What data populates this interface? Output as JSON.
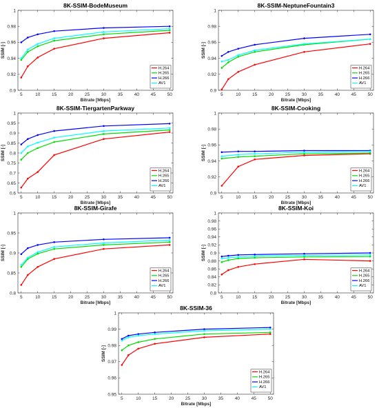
{
  "colors": {
    "H.264": "#ff0000",
    "H.265": "#00dd00",
    "H.266": "#0000ff",
    "AV1": "#00ffff"
  },
  "chart_data": [
    {
      "type": "line",
      "title": "8K-SSIM-BodeMuseum",
      "xlabel": "Bitrate [Mbps]",
      "ylabel": "SSIM [-]",
      "x": [
        5,
        7,
        10,
        15,
        30,
        50
      ],
      "xticks": [
        "5",
        "10",
        "15",
        "20",
        "25",
        "30",
        "35",
        "40",
        "45",
        "50"
      ],
      "yticks": [
        "0.9",
        "0.92",
        "0.94",
        "0.96",
        "0.98",
        "1"
      ],
      "xlim": [
        4,
        51
      ],
      "ylim": [
        0.9,
        1.0
      ],
      "grid": false,
      "legend": "bottom-right",
      "series": [
        {
          "name": "H.264",
          "values": [
            0.916,
            0.93,
            0.941,
            0.952,
            0.965,
            0.972
          ]
        },
        {
          "name": "H.265",
          "values": [
            0.938,
            0.948,
            0.955,
            0.962,
            0.97,
            0.975
          ]
        },
        {
          "name": "H.266",
          "values": [
            0.96,
            0.966,
            0.97,
            0.974,
            0.978,
            0.98
          ]
        },
        {
          "name": "AV1",
          "values": [
            0.94,
            0.951,
            0.958,
            0.965,
            0.973,
            0.977
          ]
        }
      ]
    },
    {
      "type": "line",
      "title": "8K-SSIM-NeptuneFountain3",
      "xlabel": "Bitrate [Mbps]",
      "ylabel": "SSIM [-]",
      "x": [
        5,
        7,
        10,
        15,
        30,
        50
      ],
      "xticks": [
        "5",
        "10",
        "15",
        "20",
        "25",
        "30",
        "35",
        "40",
        "45",
        "50"
      ],
      "yticks": [
        "0.9",
        "0.92",
        "0.94",
        "0.96",
        "0.98",
        "1"
      ],
      "xlim": [
        4,
        51
      ],
      "ylim": [
        0.9,
        1.0
      ],
      "grid": false,
      "legend": "bottom-right",
      "series": [
        {
          "name": "H.264",
          "values": [
            0.901,
            0.914,
            0.923,
            0.932,
            0.948,
            0.958
          ]
        },
        {
          "name": "H.265",
          "values": [
            0.928,
            0.935,
            0.942,
            0.948,
            0.957,
            0.964
          ]
        },
        {
          "name": "H.266",
          "values": [
            0.943,
            0.948,
            0.952,
            0.957,
            0.965,
            0.97
          ]
        },
        {
          "name": "AV1",
          "values": [
            0.936,
            0.938,
            0.944,
            0.95,
            0.958,
            0.964
          ]
        }
      ]
    },
    {
      "type": "line",
      "title": "8K-SSIM-TiergartenParkway",
      "xlabel": "Bitrate [Mbps]",
      "ylabel": "SSIM [-]",
      "x": [
        5,
        7,
        10,
        15,
        30,
        50
      ],
      "xticks": [
        "5",
        "10",
        "15",
        "20",
        "25",
        "30",
        "35",
        "40",
        "45",
        "50"
      ],
      "yticks": [
        "0.6",
        "0.65",
        "0.7",
        "0.75",
        "0.8",
        "0.85",
        "0.9",
        "0.95",
        "1"
      ],
      "xlim": [
        4,
        51
      ],
      "ylim": [
        0.6,
        1.0
      ],
      "grid": false,
      "legend": "bottom-right",
      "series": [
        {
          "name": "H.264",
          "values": [
            0.627,
            0.672,
            0.705,
            0.79,
            0.87,
            0.905
          ]
        },
        {
          "name": "H.265",
          "values": [
            0.767,
            0.8,
            0.825,
            0.855,
            0.895,
            0.915
          ]
        },
        {
          "name": "H.266",
          "values": [
            0.843,
            0.87,
            0.89,
            0.91,
            0.935,
            0.947
          ]
        },
        {
          "name": "AV1",
          "values": [
            0.8,
            0.833,
            0.852,
            0.877,
            0.91,
            0.925
          ]
        }
      ]
    },
    {
      "type": "line",
      "title": "8K-SSIM-Cooking",
      "xlabel": "Bitrate [Mbps]",
      "ylabel": "SSIM [-]",
      "x": [
        5,
        10,
        15,
        30,
        50
      ],
      "xticks": [
        "5",
        "10",
        "15",
        "20",
        "25",
        "30",
        "35",
        "40",
        "45",
        "50"
      ],
      "yticks": [
        "0.9",
        "0.92",
        "0.94",
        "0.96",
        "0.98",
        "1"
      ],
      "xlim": [
        4,
        51
      ],
      "ylim": [
        0.9,
        1.0
      ],
      "grid": false,
      "legend": "bottom-right",
      "series": [
        {
          "name": "H.264",
          "values": [
            0.909,
            0.933,
            0.942,
            0.947,
            0.949
          ]
        },
        {
          "name": "H.265",
          "values": [
            0.943,
            0.945,
            0.946,
            0.949,
            0.95
          ]
        },
        {
          "name": "H.266",
          "values": [
            0.951,
            0.952,
            0.952,
            0.953,
            0.953
          ]
        },
        {
          "name": "AV1",
          "values": [
            0.946,
            0.948,
            0.949,
            0.951,
            0.952
          ]
        }
      ]
    },
    {
      "type": "line",
      "title": "8K-SSIM-Girafe",
      "xlabel": "Bitrate [Mbps]",
      "ylabel": "SSIM [-]",
      "x": [
        5,
        7,
        10,
        15,
        30,
        50
      ],
      "xticks": [
        "5",
        "10",
        "15",
        "20",
        "25",
        "30",
        "35",
        "40",
        "45",
        "50"
      ],
      "yticks": [
        "0.8",
        "0.85",
        "0.9",
        "0.95",
        "1"
      ],
      "xlim": [
        4,
        51
      ],
      "ylim": [
        0.8,
        1.0
      ],
      "grid": false,
      "legend": "bottom-right",
      "series": [
        {
          "name": "H.264",
          "values": [
            0.82,
            0.845,
            0.865,
            0.885,
            0.91,
            0.92
          ]
        },
        {
          "name": "H.265",
          "values": [
            0.865,
            0.885,
            0.898,
            0.91,
            0.92,
            0.927
          ]
        },
        {
          "name": "H.266",
          "values": [
            0.897,
            0.912,
            0.92,
            0.927,
            0.934,
            0.938
          ]
        },
        {
          "name": "AV1",
          "values": [
            0.87,
            0.888,
            0.902,
            0.915,
            0.925,
            0.932
          ]
        }
      ]
    },
    {
      "type": "line",
      "title": "8K-SSIM-Koi",
      "xlabel": "Bitrate [Mbps]",
      "ylabel": "SSIM [-]",
      "x": [
        5,
        7,
        10,
        15,
        30,
        50
      ],
      "xticks": [
        "5",
        "10",
        "15",
        "20",
        "25",
        "30",
        "35",
        "40",
        "45",
        "50"
      ],
      "yticks": [
        "0.8",
        "0.82",
        "0.84",
        "0.86",
        "0.88",
        "0.9",
        "0.92",
        "0.94",
        "0.96",
        "0.98",
        "1"
      ],
      "xlim": [
        4,
        51
      ],
      "ylim": [
        0.8,
        1.0
      ],
      "grid": false,
      "legend": "bottom-right",
      "series": [
        {
          "name": "H.264",
          "values": [
            0.846,
            0.857,
            0.865,
            0.872,
            0.884,
            0.88
          ]
        },
        {
          "name": "H.265",
          "values": [
            0.877,
            0.882,
            0.886,
            0.888,
            0.89,
            0.891
          ]
        },
        {
          "name": "H.266",
          "values": [
            0.891,
            0.893,
            0.895,
            0.896,
            0.898,
            0.9
          ]
        },
        {
          "name": "AV1",
          "values": [
            0.886,
            0.888,
            0.89,
            0.892,
            0.894,
            0.895
          ]
        }
      ]
    },
    {
      "type": "line",
      "title": "8K-SSIM-36",
      "xlabel": "Bitrate [Mbps]",
      "ylabel": "SSIM [-]",
      "x": [
        5,
        7,
        10,
        15,
        30,
        50
      ],
      "xticks": [
        "5",
        "10",
        "15",
        "20",
        "25",
        "30",
        "35",
        "40",
        "45",
        "50"
      ],
      "yticks": [
        "0.95",
        "0.96",
        "0.97",
        "0.98",
        "0.99",
        "1"
      ],
      "xlim": [
        4,
        51
      ],
      "ylim": [
        0.95,
        1.0
      ],
      "grid": false,
      "legend": "bottom-right",
      "series": [
        {
          "name": "H.264",
          "values": [
            0.968,
            0.974,
            0.978,
            0.981,
            0.985,
            0.987
          ]
        },
        {
          "name": "H.265",
          "values": [
            0.977,
            0.98,
            0.982,
            0.984,
            0.987,
            0.988
          ]
        },
        {
          "name": "H.266",
          "values": [
            0.984,
            0.986,
            0.987,
            0.988,
            0.99,
            0.991
          ]
        },
        {
          "name": "AV1",
          "values": [
            0.983,
            0.985,
            0.986,
            0.987,
            0.989,
            0.99
          ]
        }
      ]
    }
  ]
}
